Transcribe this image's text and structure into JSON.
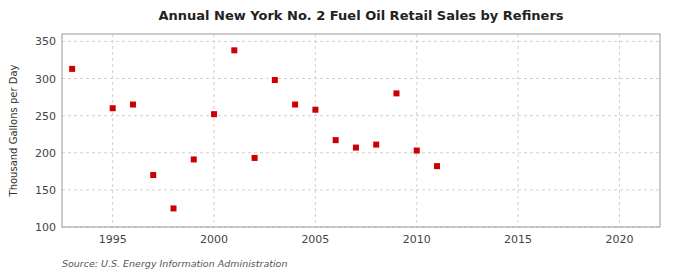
{
  "chart_data": {
    "type": "scatter",
    "title": "Annual New York No. 2 Fuel Oil Retail Sales by Refiners",
    "ylabel": "Thousand Gallons per Day",
    "annotations": [
      "Source: U.S. Energy Information Administration"
    ],
    "color": "#cc0000",
    "marker": "square",
    "grid": true,
    "xlim": [
      1992.5,
      2022
    ],
    "ylim": [
      100,
      360
    ],
    "xticks": [
      1995,
      2000,
      2005,
      2010,
      2015,
      2020
    ],
    "yticks": [
      100,
      150,
      200,
      250,
      300,
      350
    ],
    "x": [
      1993,
      1995,
      1996,
      1997,
      1998,
      1999,
      2000,
      2001,
      2002,
      2003,
      2004,
      2005,
      2006,
      2007,
      2008,
      2009,
      2010,
      2011
    ],
    "values": [
      313,
      260,
      265,
      170,
      125,
      191,
      252,
      338,
      193,
      298,
      265,
      258,
      217,
      207,
      211,
      280,
      203,
      182
    ]
  }
}
